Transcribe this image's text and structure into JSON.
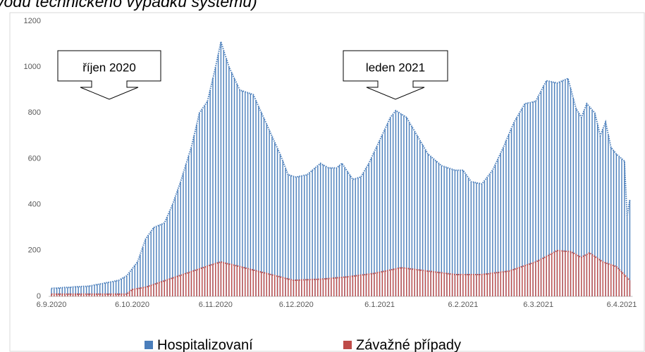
{
  "chart_data": {
    "type": "bar",
    "title": "vodu technického výpadku systému)",
    "annotations": [
      "říjen 2020",
      "leden 2021"
    ],
    "legend": "bottom",
    "ylim": [
      0,
      1200
    ],
    "yticks": [
      0,
      200,
      400,
      600,
      800,
      1000,
      1200
    ],
    "categories": [
      "6.9.2020",
      null,
      null,
      null,
      null,
      null,
      null,
      null,
      null,
      null,
      null,
      null,
      null,
      null,
      null,
      null,
      null,
      null,
      null,
      null,
      null,
      null,
      null,
      null,
      null,
      null,
      null,
      null,
      null,
      null,
      "6.10.2020",
      null,
      null,
      null,
      null,
      null,
      null,
      null,
      null,
      null,
      null,
      null,
      null,
      null,
      null,
      null,
      null,
      null,
      null,
      null,
      null,
      null,
      null,
      null,
      null,
      null,
      null,
      null,
      null,
      null,
      null,
      "6.11.2020",
      null,
      null,
      null,
      null,
      null,
      null,
      null,
      null,
      null,
      null,
      null,
      null,
      null,
      null,
      null,
      null,
      null,
      null,
      null,
      null,
      null,
      null,
      null,
      null,
      null,
      null,
      null,
      null,
      null,
      "6.12.2020",
      null,
      null,
      null,
      null,
      null,
      null,
      null,
      null,
      null,
      null,
      null,
      null,
      null,
      null,
      null,
      null,
      null,
      null,
      null,
      null,
      null,
      null,
      null,
      null,
      null,
      null,
      null,
      null,
      null,
      null,
      "6.1.2021",
      null,
      null,
      null,
      null,
      null,
      null,
      null,
      null,
      null,
      null,
      null,
      null,
      null,
      null,
      null,
      null,
      null,
      null,
      null,
      null,
      null,
      null,
      null,
      null,
      null,
      null,
      null,
      null,
      null,
      null,
      "6.2.2021",
      null,
      null,
      null,
      null,
      null,
      null,
      null,
      null,
      null,
      null,
      null,
      null,
      null,
      null,
      null,
      null,
      null,
      null,
      null,
      null,
      null,
      null,
      null,
      null,
      null,
      null,
      null,
      "6.3.2021",
      null,
      null,
      null,
      null,
      null,
      null,
      null,
      null,
      null,
      null,
      null,
      null,
      null,
      null,
      null,
      null,
      null,
      null,
      null,
      null,
      null,
      null,
      null,
      null,
      null,
      null,
      null,
      null,
      null,
      null,
      "6.4.2021",
      null,
      null,
      null
    ],
    "series": [
      {
        "name": "Hospitalizovaní",
        "color": "#4a7ebb",
        "values": [
          35,
          36,
          36,
          37,
          38,
          39,
          39,
          40,
          41,
          42,
          42,
          43,
          44,
          44,
          45,
          47,
          50,
          52,
          54,
          56,
          59,
          61,
          63,
          65,
          68,
          70,
          77,
          83,
          90,
          105,
          120,
          135,
          150,
          183,
          217,
          250,
          267,
          283,
          300,
          305,
          310,
          315,
          320,
          347,
          373,
          400,
          433,
          467,
          500,
          538,
          575,
          613,
          650,
          700,
          750,
          800,
          817,
          833,
          850,
          900,
          950,
          1000,
          1055,
          1110,
          1073,
          1037,
          1000,
          975,
          950,
          925,
          900,
          896,
          892,
          888,
          884,
          880,
          854,
          828,
          802,
          776,
          750,
          724,
          698,
          672,
          646,
          620,
          590,
          560,
          530,
          527,
          523,
          520,
          523,
          525,
          528,
          530,
          540,
          550,
          560,
          570,
          580,
          573,
          567,
          560,
          560,
          560,
          560,
          570,
          580,
          563,
          545,
          528,
          510,
          513,
          517,
          520,
          540,
          560,
          580,
          605,
          630,
          655,
          680,
          705,
          730,
          755,
          780,
          795,
          810,
          803,
          795,
          788,
          780,
          760,
          740,
          720,
          700,
          680,
          660,
          640,
          620,
          610,
          600,
          590,
          580,
          570,
          566,
          562,
          558,
          554,
          550,
          550,
          550,
          550,
          533,
          517,
          500,
          498,
          495,
          493,
          490,
          505,
          520,
          535,
          550,
          575,
          600,
          625,
          650,
          678,
          705,
          733,
          760,
          780,
          800,
          820,
          840,
          843,
          845,
          848,
          850,
          873,
          895,
          918,
          940,
          938,
          935,
          933,
          930,
          935,
          940,
          945,
          950,
          907,
          863,
          820,
          800,
          780,
          810,
          840,
          827,
          813,
          800,
          750,
          700,
          730,
          760,
          705,
          650,
          635,
          620,
          610,
          600,
          590,
          350,
          420
        ]
      },
      {
        "name": "Závažné případy",
        "color": "#be4b48",
        "values": [
          10,
          10,
          10,
          10,
          10,
          10,
          10,
          10,
          10,
          10,
          10,
          10,
          10,
          10,
          10,
          10,
          10,
          10,
          10,
          10,
          10,
          10,
          10,
          10,
          10,
          10,
          10,
          10,
          10,
          20,
          30,
          32,
          34,
          36,
          38,
          40,
          44,
          48,
          52,
          56,
          60,
          64,
          68,
          72,
          76,
          80,
          84,
          88,
          92,
          96,
          100,
          104,
          108,
          112,
          116,
          120,
          124,
          128,
          132,
          136,
          140,
          143,
          147,
          150,
          147,
          144,
          141,
          139,
          136,
          133,
          130,
          127,
          124,
          121,
          118,
          115,
          112,
          109,
          106,
          103,
          100,
          97,
          94,
          91,
          88,
          85,
          82,
          79,
          76,
          73,
          70,
          71,
          71,
          72,
          72,
          73,
          73,
          74,
          74,
          75,
          75,
          76,
          77,
          78,
          79,
          80,
          81,
          82,
          83,
          84,
          85,
          87,
          88,
          90,
          91,
          93,
          94,
          96,
          97,
          99,
          100,
          103,
          105,
          108,
          110,
          113,
          115,
          118,
          120,
          123,
          125,
          124,
          122,
          121,
          119,
          118,
          116,
          115,
          113,
          112,
          110,
          109,
          107,
          106,
          104,
          103,
          101,
          100,
          98,
          97,
          95,
          95,
          95,
          95,
          95,
          95,
          95,
          95,
          95,
          95,
          95,
          97,
          98,
          100,
          101,
          103,
          104,
          106,
          107,
          109,
          110,
          114,
          118,
          122,
          126,
          130,
          134,
          138,
          142,
          146,
          150,
          156,
          162,
          168,
          174,
          180,
          187,
          193,
          200,
          199,
          198,
          197,
          196,
          195,
          189,
          183,
          176,
          170,
          177,
          183,
          190,
          182,
          174,
          166,
          158,
          150,
          146,
          142,
          138,
          134,
          130,
          118,
          106,
          94,
          82,
          70
        ]
      }
    ]
  }
}
